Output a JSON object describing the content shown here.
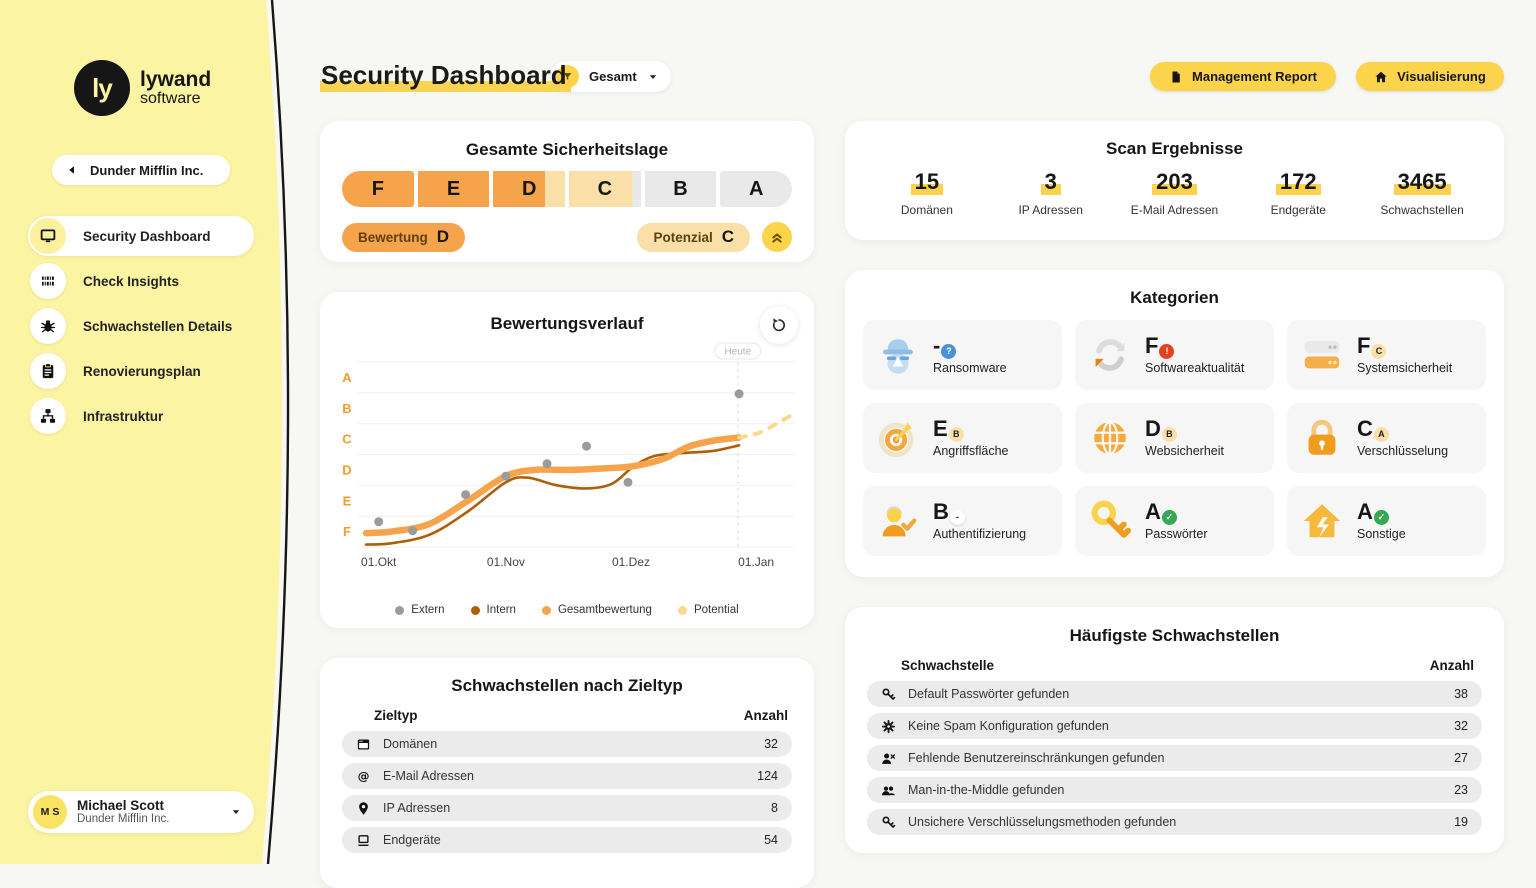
{
  "sidebar": {
    "logo": {
      "mark": "ly",
      "line1": "lywand",
      "line2": "software"
    },
    "company_button": {
      "label": "Dunder Mifflin Inc."
    },
    "nav": [
      {
        "icon": "monitor-icon",
        "label": "Security Dashboard",
        "active": true
      },
      {
        "icon": "barcode-icon",
        "label": "Check Insights",
        "active": false
      },
      {
        "icon": "bug-icon",
        "label": "Schwachstellen Details",
        "active": false
      },
      {
        "icon": "clipboard-icon",
        "label": "Renovierungsplan",
        "active": false
      },
      {
        "icon": "sitemap-icon",
        "label": "Infrastruktur",
        "active": false
      }
    ],
    "user": {
      "initials": "M S",
      "name": "Michael Scott",
      "company": "Dunder Mifflin Inc."
    }
  },
  "header": {
    "title": "Security Dashboard",
    "filter": {
      "label": "Gesamt"
    },
    "actions": [
      {
        "icon": "document-icon",
        "label": "Management Report"
      },
      {
        "icon": "home-icon",
        "label": "Visualisierung"
      }
    ]
  },
  "security_posture": {
    "title": "Gesamte Sicherheitslage",
    "segments": [
      {
        "label": "F",
        "fill": "orange"
      },
      {
        "label": "E",
        "fill": "orange"
      },
      {
        "label": "D",
        "fill": "orange-cream",
        "split": 72
      },
      {
        "label": "C",
        "fill": "cream-gray",
        "split": 88
      },
      {
        "label": "B",
        "fill": "gray"
      },
      {
        "label": "A",
        "fill": "gray"
      }
    ],
    "rating": {
      "label": "Bewertung",
      "value": "D"
    },
    "potential": {
      "label": "Potenzial",
      "value": "C"
    }
  },
  "scan_results": {
    "title": "Scan Ergebnisse",
    "stats": [
      {
        "value": "15",
        "label": "Domänen"
      },
      {
        "value": "3",
        "label": "IP Adressen"
      },
      {
        "value": "203",
        "label": "E-Mail Adressen"
      },
      {
        "value": "172",
        "label": "Endgeräte"
      },
      {
        "value": "3465",
        "label": "Schwachstellen"
      }
    ]
  },
  "chart_data": {
    "type": "line",
    "title": "Bewertungsverlauf",
    "y_axis": {
      "labels": [
        "A",
        "B",
        "C",
        "D",
        "E",
        "F"
      ],
      "note": "grade bands, F=0..1 bottom to A=5..6 top"
    },
    "x_ticks": [
      {
        "label": "01.Okt",
        "x": 3
      },
      {
        "label": "01.Nov",
        "x": 33
      },
      {
        "label": "01.Dez",
        "x": 62.5
      },
      {
        "label": "01.Jan",
        "x": 92
      }
    ],
    "annotation": {
      "label": "Heute",
      "x": 87.7
    },
    "series": [
      {
        "name": "Intern",
        "type": "line",
        "color": "#ad5f07",
        "width": 2.6,
        "points": [
          [
            0,
            0.08
          ],
          [
            6,
            0.12
          ],
          [
            15,
            0.4
          ],
          [
            24,
            1.15
          ],
          [
            33,
            2.1
          ],
          [
            38,
            2.25
          ],
          [
            45,
            2.0
          ],
          [
            52,
            1.9
          ],
          [
            58,
            2.05
          ],
          [
            63,
            2.6
          ],
          [
            68,
            2.95
          ],
          [
            75,
            3.05
          ],
          [
            82,
            3.12
          ],
          [
            88,
            3.3
          ]
        ]
      },
      {
        "name": "Gesamtbewertung",
        "type": "line",
        "color": "#f6a44b",
        "width": 6.5,
        "points": [
          [
            0,
            0.45
          ],
          [
            6,
            0.5
          ],
          [
            15,
            0.75
          ],
          [
            24,
            1.5
          ],
          [
            33,
            2.3
          ],
          [
            40,
            2.5
          ],
          [
            48,
            2.5
          ],
          [
            56,
            2.55
          ],
          [
            63,
            2.62
          ],
          [
            70,
            2.85
          ],
          [
            76,
            3.25
          ],
          [
            82,
            3.45
          ],
          [
            88,
            3.55
          ]
        ]
      },
      {
        "name": "Potential",
        "type": "line-dashed",
        "color": "#fbd98e",
        "width": 4,
        "points": [
          [
            88,
            3.55
          ],
          [
            93,
            3.72
          ],
          [
            100,
            4.25
          ]
        ]
      },
      {
        "name": "Extern",
        "type": "scatter",
        "color": "#9b9b9b",
        "points": [
          [
            3,
            0.82
          ],
          [
            11,
            0.53
          ],
          [
            23.5,
            1.7
          ],
          [
            33,
            2.3
          ],
          [
            42.7,
            2.7
          ],
          [
            52,
            3.27
          ],
          [
            61.8,
            2.1
          ],
          [
            88,
            4.97
          ]
        ]
      }
    ],
    "legend": [
      {
        "label": "Extern",
        "color": "#9b9b9b"
      },
      {
        "label": "Intern",
        "color": "#ad5f07"
      },
      {
        "label": "Gesamtbewertung",
        "color": "#f6a44b"
      },
      {
        "label": "Potential",
        "color": "#fbd98e"
      }
    ],
    "grid": true
  },
  "categories": {
    "title": "Kategorien",
    "tiles": [
      {
        "icon": "spy-icon",
        "label": "Ransomware",
        "grade": "-",
        "badge": "?",
        "badge_style": "blue"
      },
      {
        "icon": "refresh-icon",
        "label": "Softwareaktualität",
        "grade": "F",
        "badge": "!",
        "badge_style": "red"
      },
      {
        "icon": "server-icon",
        "label": "Systemsicherheit",
        "grade": "F",
        "badge": "C",
        "badge_style": "cream"
      },
      {
        "icon": "target-icon",
        "label": "Angriffsfläche",
        "grade": "E",
        "badge": "B",
        "badge_style": "cream"
      },
      {
        "icon": "globe-icon",
        "label": "Websicherheit",
        "grade": "D",
        "badge": "B",
        "badge_style": "cream"
      },
      {
        "icon": "lock-icon",
        "label": "Verschlüsselung",
        "grade": "C",
        "badge": "A",
        "badge_style": "cream"
      },
      {
        "icon": "person-check-icon",
        "label": "Authentifizierung",
        "grade": "B",
        "badge": "-",
        "badge_style": "white"
      },
      {
        "icon": "key-icon",
        "label": "Passwörter",
        "grade": "A",
        "badge": "✓",
        "badge_style": "green"
      },
      {
        "icon": "house-icon",
        "label": "Sonstige",
        "grade": "A",
        "badge": "✓",
        "badge_style": "green"
      }
    ]
  },
  "target_table": {
    "title": "Schwachstellen nach Zieltyp",
    "columns": [
      "Zieltyp",
      "Anzahl"
    ],
    "rows": [
      {
        "icon": "browser-icon",
        "label": "Domänen",
        "value": "32"
      },
      {
        "icon": "at-icon",
        "label": "E-Mail Adressen",
        "value": "124"
      },
      {
        "icon": "pin-icon",
        "label": "IP Adressen",
        "value": "8"
      },
      {
        "icon": "laptop-icon",
        "label": "Endgeräte",
        "value": "54"
      }
    ]
  },
  "vuln_table": {
    "title": "Häufigste Schwachstellen",
    "columns": [
      "Schwachstelle",
      "Anzahl"
    ],
    "rows": [
      {
        "icon": "key-small-icon",
        "label": "Default Passwörter gefunden",
        "value": "38"
      },
      {
        "icon": "gear-icon",
        "label": "Keine Spam Konfiguration gefunden",
        "value": "32"
      },
      {
        "icon": "person-x-icon",
        "label": "Fehlende Benutzereinschränkungen gefunden",
        "value": "27"
      },
      {
        "icon": "people-icon",
        "label": "Man-in-the-Middle gefunden",
        "value": "23"
      },
      {
        "icon": "key-small-icon",
        "label": "Unsichere Verschlüsselungsmethoden gefunden",
        "value": "19"
      }
    ]
  },
  "colors": {
    "accent_yellow": "#fbd44c",
    "sidebar_yellow": "#fbf4a2",
    "orange": "#f6a44b",
    "cream": "#fbdfa8",
    "segment_gray": "#e9e9e9",
    "row_gray": "#ebebeb",
    "extern_gray": "#9b9b9b",
    "intern_brown": "#ad5f07",
    "potential_cream": "#fbd98e",
    "badge_blue": "#4a90d9",
    "badge_red": "#e2431e",
    "badge_green": "#34a853"
  }
}
